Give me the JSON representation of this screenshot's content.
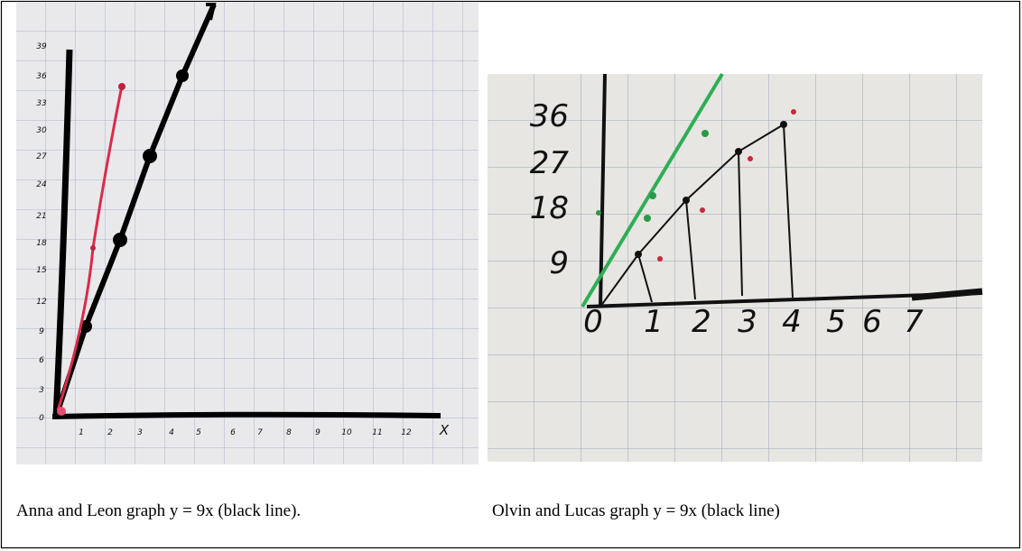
{
  "figures": [
    {
      "y_labels": [
        "39",
        "36",
        "33",
        "30",
        "27",
        "24",
        "21",
        "18",
        "15",
        "12",
        "9",
        "6",
        "3",
        "0"
      ],
      "x_labels": [
        "1",
        "2",
        "3",
        "4",
        "5",
        "6",
        "7",
        "8",
        "9",
        "10",
        "11",
        "12",
        "X"
      ],
      "caption": "Anna and Leon graph y = 9x (black line)."
    },
    {
      "y_labels": [
        "36",
        "27",
        "18",
        "9"
      ],
      "x_labels": [
        "0",
        "1",
        "2",
        "3",
        "4",
        "5",
        "6",
        "7"
      ],
      "caption": "Olvin and Lucas graph y = 9x (black line)"
    }
  ]
}
